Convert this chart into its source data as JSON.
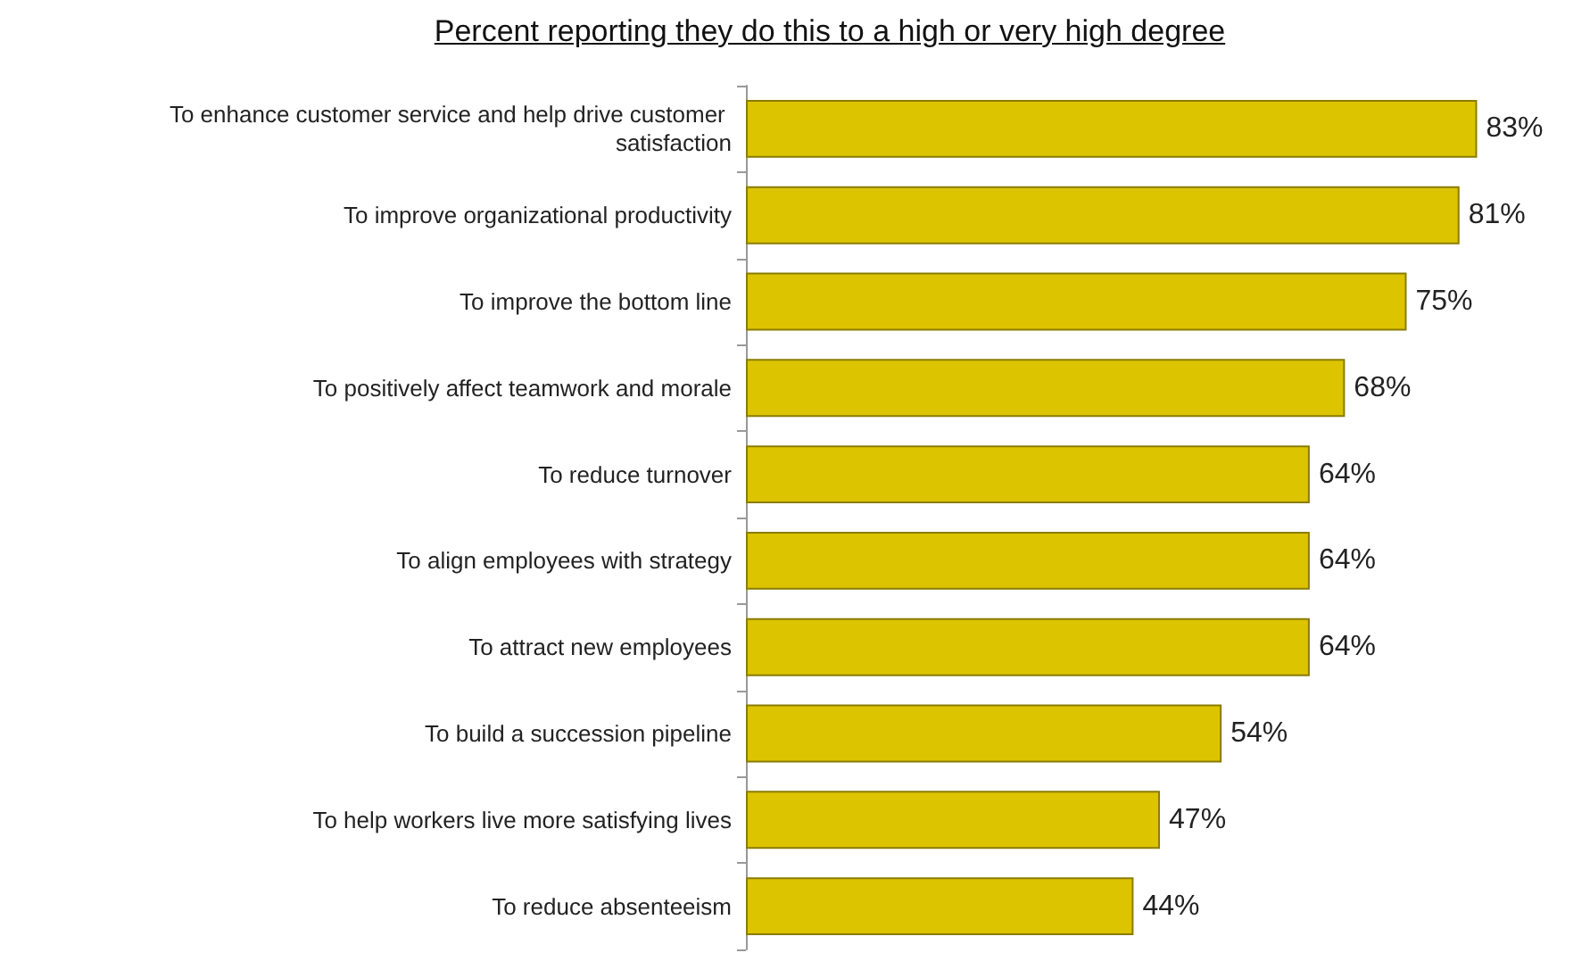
{
  "chart_data": {
    "type": "bar",
    "orientation": "horizontal",
    "title": "Percent reporting they do this to a high or very high degree",
    "categories": [
      "To enhance customer service and help drive customer satisfaction",
      "To improve organizational productivity",
      "To improve the bottom line",
      "To positively affect teamwork and morale",
      "To reduce turnover",
      "To align employees with strategy",
      "To attract new employees",
      "To build a succession pipeline",
      "To help workers live more satisfying lives",
      "To reduce absenteeism"
    ],
    "values": [
      83,
      81,
      75,
      68,
      64,
      64,
      64,
      54,
      47,
      44
    ],
    "value_labels": [
      "83%",
      "81%",
      "75%",
      "68%",
      "64%",
      "64%",
      "64%",
      "54%",
      "47%",
      "44%"
    ],
    "color": "#dcc400"
  }
}
